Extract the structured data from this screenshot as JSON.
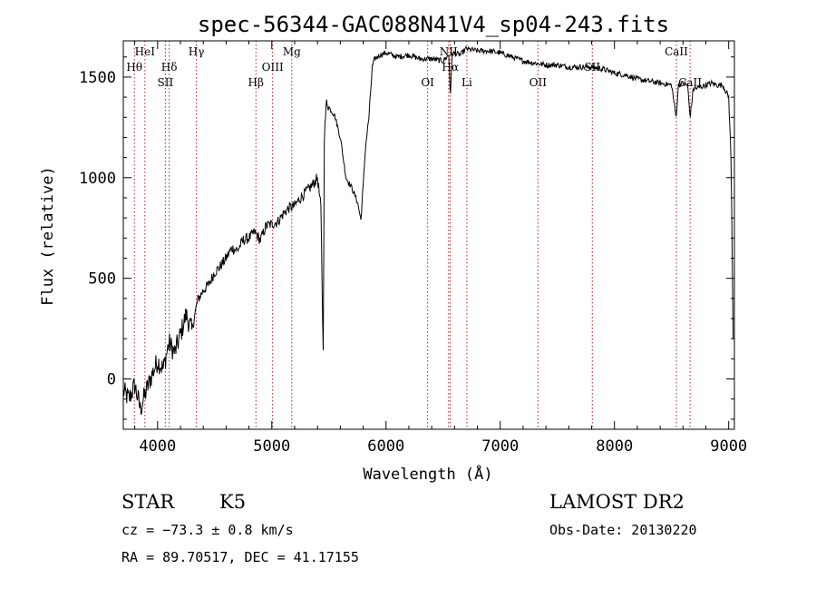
{
  "chart_data": {
    "type": "line",
    "title": "spec-56344-GAC088N41V4_sp04-243.fits",
    "xlabel": "Wavelength (Å)",
    "ylabel": "Flux (relative)",
    "xlim": [
      3700,
      9050
    ],
    "ylim": [
      -250,
      1680
    ],
    "xticks": [
      4000,
      5000,
      6000,
      7000,
      8000,
      9000
    ],
    "yticks": [
      0,
      500,
      1000,
      1500
    ],
    "grid": false,
    "series": [
      {
        "x": [
          3700,
          3750,
          3800,
          3850,
          3900,
          3950,
          4000,
          4050,
          4100,
          4150,
          4200,
          4250,
          4300,
          4350,
          4400,
          4450,
          4500,
          4550,
          4600,
          4650,
          4700,
          4750,
          4800,
          4850,
          4900,
          4950,
          5000,
          5050,
          5100,
          5150,
          5200,
          5250,
          5300,
          5350,
          5400,
          5430,
          5450,
          5460,
          5470,
          5480,
          5500,
          5550,
          5600,
          5650,
          5700,
          5750,
          5780,
          5800,
          5820,
          5850,
          5880,
          5900,
          5950,
          6000,
          6100,
          6200,
          6300,
          6400,
          6500,
          6550,
          6563,
          6580,
          6650,
          6700,
          6800,
          6900,
          7000,
          7100,
          7200,
          7300,
          7400,
          7500,
          7600,
          7700,
          7800,
          7900,
          8000,
          8100,
          8200,
          8300,
          8400,
          8500,
          8540,
          8560,
          8600,
          8640,
          8662,
          8690,
          8750,
          8800,
          8850,
          8900,
          8950,
          9000,
          9020,
          9040
        ],
        "y": [
          -60,
          -100,
          -30,
          -150,
          -60,
          20,
          90,
          50,
          180,
          130,
          220,
          320,
          240,
          390,
          440,
          470,
          530,
          560,
          600,
          650,
          640,
          690,
          700,
          730,
          690,
          760,
          770,
          780,
          820,
          850,
          860,
          900,
          930,
          960,
          1000,
          850,
          130,
          1200,
          1300,
          1380,
          1350,
          1310,
          1200,
          1000,
          950,
          880,
          790,
          960,
          1150,
          1300,
          1550,
          1590,
          1610,
          1620,
          1600,
          1610,
          1590,
          1590,
          1580,
          1610,
          1400,
          1620,
          1610,
          1640,
          1630,
          1630,
          1620,
          1600,
          1580,
          1570,
          1560,
          1560,
          1550,
          1550,
          1550,
          1540,
          1520,
          1510,
          1490,
          1480,
          1470,
          1460,
          1300,
          1460,
          1470,
          1460,
          1300,
          1440,
          1450,
          1460,
          1470,
          1460,
          1460,
          1400,
          1100,
          200
        ]
      }
    ],
    "spectral_lines": [
      {
        "label": "Hθ",
        "x": 3797,
        "row": "upper"
      },
      {
        "label": "HeI",
        "x": 3889,
        "row": "top"
      },
      {
        "label": "Hδ",
        "x": 4102,
        "row": "upper"
      },
      {
        "label": "SII",
        "x": 4068,
        "row": "middle"
      },
      {
        "label": "Hγ",
        "x": 4340,
        "row": "top"
      },
      {
        "label": "Hβ",
        "x": 4861,
        "row": "middle"
      },
      {
        "label": "OIII",
        "x": 5007,
        "row": "upper"
      },
      {
        "label": "Mg",
        "x": 5175,
        "row": "top"
      },
      {
        "label": "OI",
        "x": 6364,
        "row": "middle"
      },
      {
        "label": "NII",
        "x": 6548,
        "row": "top"
      },
      {
        "label": "Hα",
        "x": 6563,
        "row": "upper"
      },
      {
        "label": "Li",
        "x": 6708,
        "row": "middle"
      },
      {
        "label": "OII",
        "x": 7330,
        "row": "middle"
      },
      {
        "label": "SII",
        "x": 7806,
        "row": "upper"
      },
      {
        "label": "CaII",
        "x": 8542,
        "row": "top"
      },
      {
        "label": "CaII",
        "x": 8662,
        "row": "middle"
      }
    ]
  },
  "footer": {
    "object_type": "STAR",
    "subclass": "K5",
    "survey": "LAMOST DR2",
    "velocity": "cz = −73.3 ± 0.8 km/s",
    "obs_date": "Obs-Date: 20130220",
    "coords": "RA =  89.70517, DEC =  41.17155"
  }
}
